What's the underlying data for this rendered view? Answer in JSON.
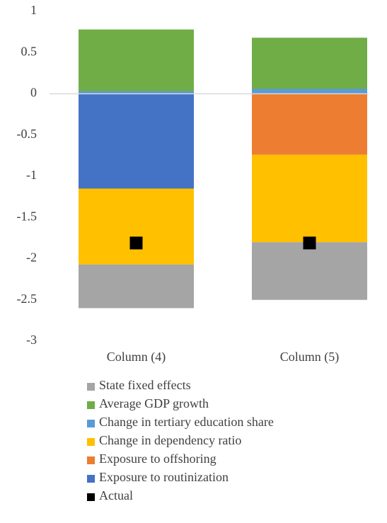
{
  "chart_data": {
    "type": "stacked_bar",
    "categories": [
      "Column (4)",
      "Column (5)"
    ],
    "series": [
      {
        "name": "State fixed effects",
        "color": "#a5a5a5",
        "values": [
          -0.53,
          -0.7
        ]
      },
      {
        "name": "Average GDP growth",
        "color": "#70ad47",
        "values": [
          0.75,
          0.62
        ]
      },
      {
        "name": "Change in tertiary education share",
        "color": "#5b9bd5",
        "values": [
          0.03,
          0.06
        ]
      },
      {
        "name": "Change in dependency ratio",
        "color": "#ffc000",
        "values": [
          -0.92,
          -1.06
        ]
      },
      {
        "name": "Exposure to offshoring",
        "color": "#ed7d31",
        "values": [
          0,
          -0.74
        ]
      },
      {
        "name": "Exposure to routinization",
        "color": "#4472c4",
        "values": [
          -1.15,
          0
        ]
      }
    ],
    "actual": {
      "name": "Actual",
      "color": "#000000",
      "values": [
        -1.81,
        -1.81
      ]
    },
    "ylim": [
      -3,
      1
    ],
    "yticks": [
      1,
      0.5,
      0,
      -0.5,
      -1,
      -1.5,
      -2,
      -2.5,
      -3
    ]
  }
}
